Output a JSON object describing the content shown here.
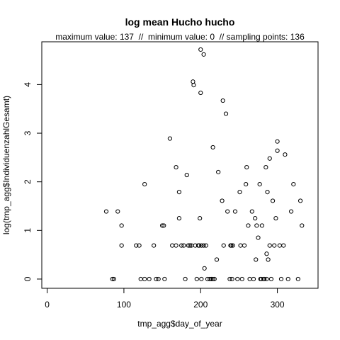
{
  "chart_data": {
    "type": "scatter",
    "title": "log mean Hucho hucho",
    "subtitle": "maximum value: 137  //  minimum value: 0  // sampling points: 136",
    "xlabel": "tmp_agg$day_of_year",
    "ylabel": "log(tmp_agg$IndividuenzahlGesamt)",
    "xlim": [
      -7,
      353
    ],
    "ylim": [
      -0.19,
      4.88
    ],
    "xticks": [
      "0",
      "100",
      "200",
      "300"
    ],
    "xtick_values": [
      0,
      100,
      200,
      300
    ],
    "yticks": [
      "0",
      "1",
      "2",
      "3",
      "4"
    ],
    "ytick_values": [
      0,
      1,
      2,
      3,
      4
    ],
    "grid": false,
    "marker": "open-circle",
    "x": [
      77,
      92,
      85,
      87,
      97,
      97,
      120,
      116,
      122,
      127,
      127,
      133,
      139,
      142,
      145,
      150,
      152,
      153,
      160,
      163,
      168,
      168,
      172,
      172,
      178,
      175,
      180,
      182,
      184,
      186,
      188,
      190,
      191,
      193,
      195,
      197,
      198,
      199,
      200,
      200,
      201,
      201,
      204,
      204,
      205,
      207,
      209,
      212,
      214,
      216,
      216,
      218,
      221,
      223,
      228,
      229,
      230,
      233,
      235,
      238,
      239,
      240,
      241,
      242,
      245,
      248,
      251,
      252,
      254,
      257,
      259,
      260,
      262,
      264,
      267,
      269,
      271,
      272,
      273,
      275,
      277,
      278,
      279,
      280,
      282,
      283,
      285,
      286,
      286,
      287,
      288,
      290,
      290,
      292,
      294,
      296,
      298,
      300,
      300,
      303,
      305,
      308,
      310,
      314,
      318,
      321,
      327,
      330,
      332
    ],
    "y": [
      1.39,
      1.39,
      0,
      0,
      0.69,
      1.1,
      0.69,
      0.69,
      0,
      1.95,
      0,
      0,
      0.69,
      0,
      0,
      1.1,
      1.1,
      0,
      2.89,
      0.69,
      2.3,
      0.69,
      1.79,
      1.25,
      0.69,
      0.69,
      0,
      2.14,
      0.69,
      0.69,
      0.69,
      4.06,
      3.99,
      0.69,
      0,
      0.69,
      0.69,
      1.25,
      3.83,
      4.72,
      0,
      0.69,
      0.69,
      4.62,
      0.22,
      0.69,
      0,
      0,
      0,
      2.71,
      0,
      0,
      0.4,
      2.2,
      1.61,
      3.67,
      0.69,
      3.4,
      1.39,
      0,
      0.69,
      0.69,
      0,
      0.69,
      1.39,
      0,
      1.79,
      0.69,
      0,
      0.69,
      1.95,
      2.3,
      1.1,
      0,
      1.39,
      0,
      1.25,
      0.4,
      1.1,
      0.85,
      1.95,
      0,
      0,
      1.1,
      0,
      0,
      2.3,
      0.52,
      0,
      1.79,
      0.4,
      0.69,
      2.48,
      0,
      1.61,
      0.69,
      1.25,
      2.83,
      2.64,
      0.69,
      0,
      0.69,
      2.56,
      0,
      1.39,
      1.95,
      0,
      1.61,
      1.1
    ]
  }
}
